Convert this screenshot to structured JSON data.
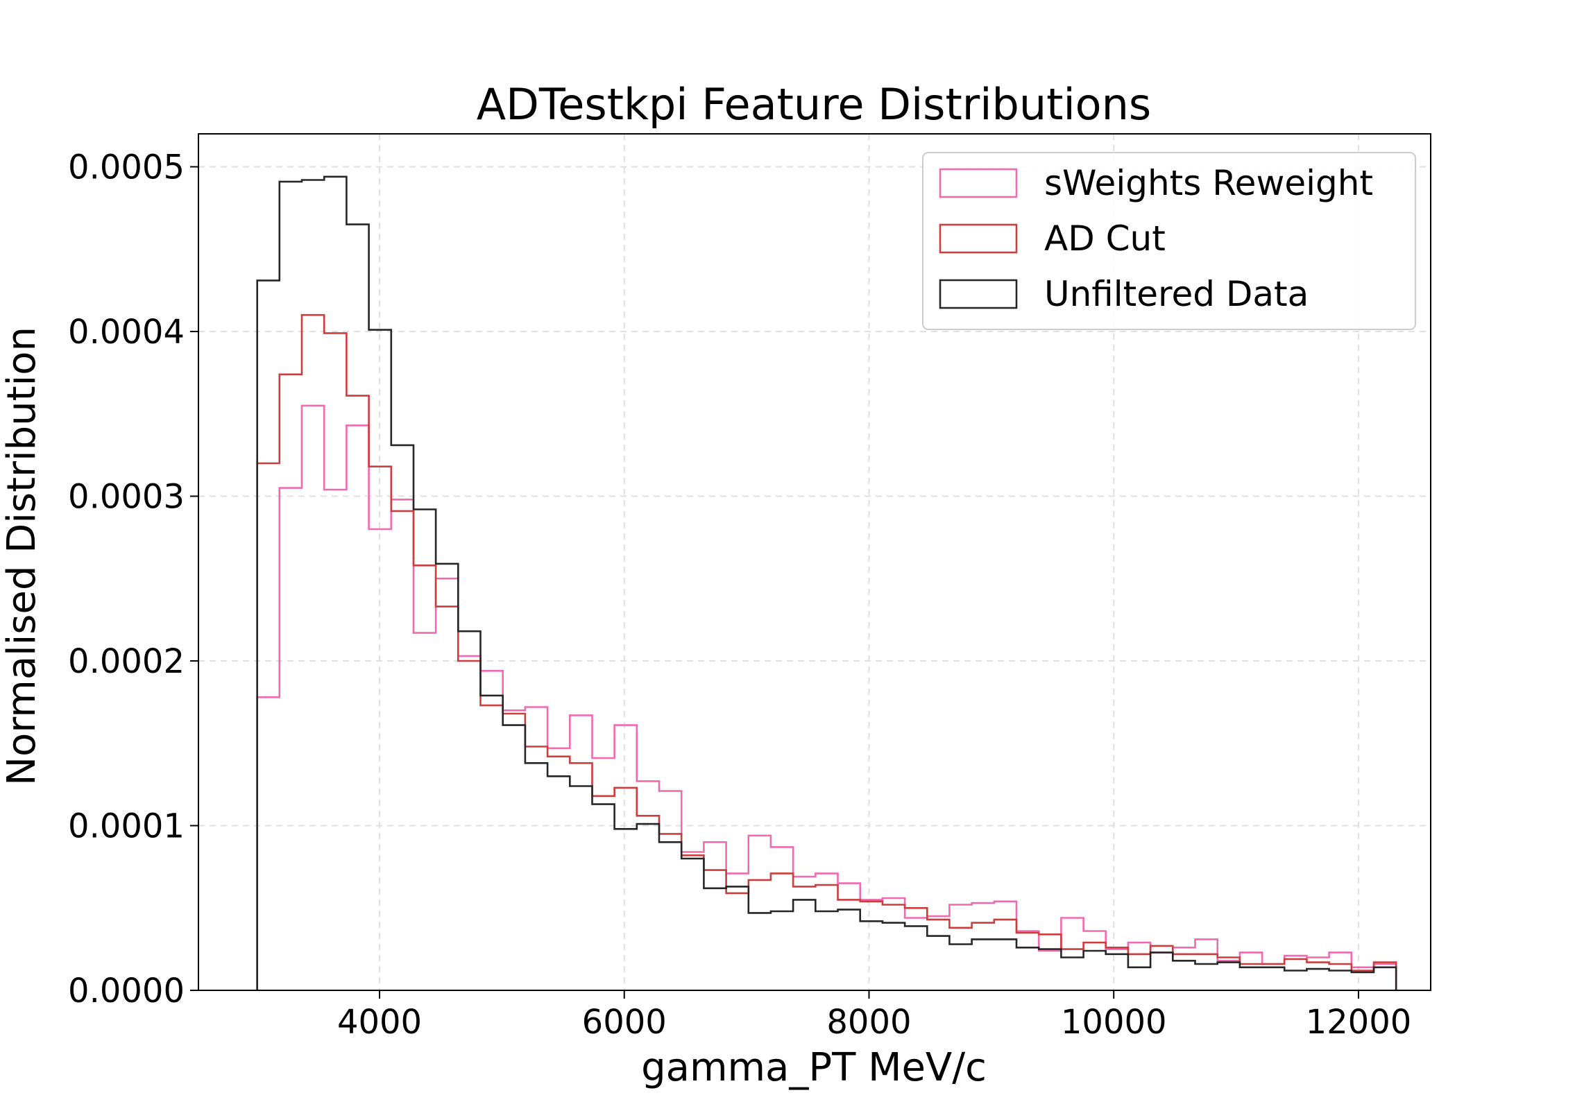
{
  "chart_data": {
    "type": "histogram-step",
    "title": "ADTestkpi Feature Distributions",
    "xlabel": "gamma_PT MeV/c",
    "ylabel": "Normalised Distribution",
    "xlim": [
      2520,
      12590
    ],
    "ylim": [
      0,
      0.00052
    ],
    "x_ticks": [
      4000,
      6000,
      8000,
      10000,
      12000
    ],
    "x_tick_labels": [
      "4000",
      "6000",
      "8000",
      "10000",
      "12000"
    ],
    "y_ticks": [
      0,
      0.0001,
      0.0002,
      0.0003,
      0.0004,
      0.0005
    ],
    "y_tick_labels": [
      "0.0000",
      "0.0001",
      "0.0002",
      "0.0003",
      "0.0004",
      "0.0005"
    ],
    "grid": true,
    "legend_position": "top-right",
    "bin_start": 3000,
    "bin_width": 182.5,
    "series": [
      {
        "name": "sWeights Reweight",
        "color": "#f06ab0",
        "values": [
          0.000178,
          0.000305,
          0.000355,
          0.000304,
          0.000343,
          0.00028,
          0.000298,
          0.000217,
          0.00025,
          0.000203,
          0.000194,
          0.00017,
          0.000172,
          0.000147,
          0.000167,
          0.000141,
          0.000161,
          0.000127,
          0.000121,
          8.4e-05,
          9e-05,
          7.1e-05,
          9.4e-05,
          8.7e-05,
          6.9e-05,
          7.1e-05,
          6.5e-05,
          5.5e-05,
          5.6e-05,
          4.4e-05,
          4.5e-05,
          5.2e-05,
          5.3e-05,
          5.4e-05,
          3.6e-05,
          2.4e-05,
          4.4e-05,
          3.6e-05,
          2.5e-05,
          2.9e-05,
          2.3e-05,
          2.6e-05,
          3.1e-05,
          1.8e-05,
          2.3e-05,
          1.6e-05,
          2.1e-05,
          2e-05,
          2.3e-05,
          1.4e-05,
          1.6e-05
        ]
      },
      {
        "name": "AD Cut",
        "color": "#cc3d3d",
        "values": [
          0.00032,
          0.000374,
          0.00041,
          0.000399,
          0.000361,
          0.000318,
          0.000291,
          0.000258,
          0.000233,
          0.0002,
          0.000173,
          0.000168,
          0.000148,
          0.000142,
          0.000138,
          0.000118,
          0.000123,
          0.000106,
          9.5e-05,
          8.2e-05,
          7.3e-05,
          5.9e-05,
          6.7e-05,
          7.1e-05,
          6.3e-05,
          6.4e-05,
          5.5e-05,
          5.4e-05,
          5.2e-05,
          5e-05,
          4.3e-05,
          3.8e-05,
          4.1e-05,
          4.3e-05,
          3.5e-05,
          3.4e-05,
          2.5e-05,
          2.9e-05,
          2.6e-05,
          2.2e-05,
          2.7e-05,
          2.2e-05,
          2.2e-05,
          2e-05,
          1.6e-05,
          1.6e-05,
          1.9e-05,
          1.7e-05,
          1.6e-05,
          1.2e-05,
          1.7e-05
        ]
      },
      {
        "name": "Unfiltered Data",
        "color": "#262626",
        "values": [
          0.000431,
          0.000491,
          0.000492,
          0.000494,
          0.000465,
          0.000401,
          0.000331,
          0.000292,
          0.000259,
          0.000218,
          0.000179,
          0.000161,
          0.000138,
          0.00013,
          0.000124,
          0.000113,
          9.8e-05,
          0.000101,
          9e-05,
          8e-05,
          6.2e-05,
          6.3e-05,
          4.7e-05,
          4.8e-05,
          5.5e-05,
          4.8e-05,
          4.9e-05,
          4.2e-05,
          4.1e-05,
          3.9e-05,
          3.3e-05,
          2.8e-05,
          3.1e-05,
          3.1e-05,
          2.6e-05,
          2.5e-05,
          2e-05,
          2.4e-05,
          2.2e-05,
          1.4e-05,
          2.3e-05,
          1.8e-05,
          1.6e-05,
          1.7e-05,
          1.4e-05,
          1.4e-05,
          1.2e-05,
          1.3e-05,
          1.2e-05,
          1.1e-05,
          1.4e-05
        ]
      }
    ]
  }
}
